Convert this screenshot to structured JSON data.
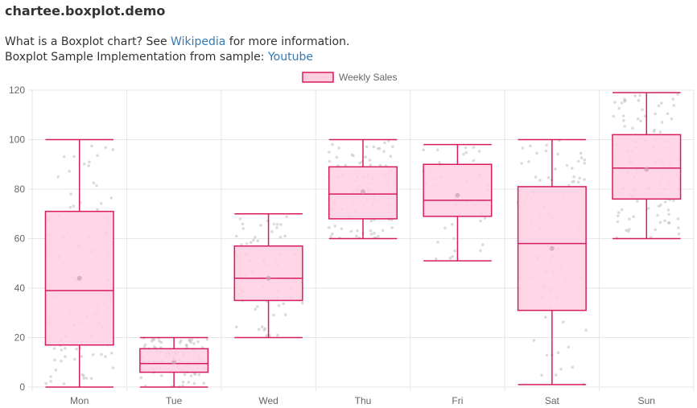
{
  "page": {
    "title": "chartee.boxplot.demo",
    "line1_prefix": "What is a Boxplot chart? See ",
    "line1_link": "Wikipedia",
    "line1_suffix": " for more information.",
    "line2_prefix": "Boxplot Sample Implementation from sample: ",
    "line2_link": "Youtube"
  },
  "chart_data": {
    "type": "boxplot",
    "title": "",
    "xlabel": "",
    "ylabel": "",
    "ylim": [
      0,
      120
    ],
    "yticks": [
      0,
      20,
      40,
      60,
      80,
      100,
      120
    ],
    "legend": {
      "position": "top-center",
      "entries": [
        "Weekly Sales"
      ]
    },
    "grid": true,
    "colors": {
      "border": "#d81b60",
      "fill": "#ffcfe0",
      "points": "#bdbdbd",
      "grid": "#e6e6e6"
    },
    "categories": [
      "Mon",
      "Tue",
      "Wed",
      "Thu",
      "Fri",
      "Sat",
      "Sun"
    ],
    "series": [
      {
        "name": "Weekly Sales",
        "boxes": [
          {
            "min": 0,
            "q1": 17,
            "median": 39,
            "q3": 71,
            "max": 100,
            "mean": 44
          },
          {
            "min": 0,
            "q1": 6,
            "median": 9.5,
            "q3": 15.5,
            "max": 20,
            "mean": 10
          },
          {
            "min": 20,
            "q1": 35,
            "median": 44,
            "q3": 57,
            "max": 70,
            "mean": 44
          },
          {
            "min": 60,
            "q1": 68,
            "median": 78,
            "q3": 89,
            "max": 100,
            "mean": 79
          },
          {
            "min": 51,
            "q1": 69,
            "median": 75.5,
            "q3": 90,
            "max": 98,
            "mean": 77.5
          },
          {
            "min": 1,
            "q1": 31,
            "median": 58,
            "q3": 81,
            "max": 100,
            "mean": 56
          },
          {
            "min": 60,
            "q1": 76,
            "median": 88.5,
            "q3": 102,
            "max": 119,
            "mean": 88
          }
        ],
        "point_counts": [
          90,
          80,
          70,
          85,
          45,
          80,
          100
        ]
      }
    ]
  }
}
